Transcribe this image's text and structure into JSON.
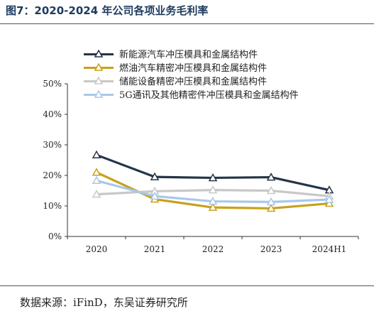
{
  "header": {
    "title": "图7：2020-2024 年公司各项业务毛利率"
  },
  "footer": {
    "source": "数据来源：iFinD，东吴证券研究所"
  },
  "chart_data": {
    "type": "line",
    "title": "",
    "xlabel": "",
    "ylabel": "",
    "categories": [
      "2020",
      "2021",
      "2022",
      "2023",
      "2024H1"
    ],
    "yticks": [
      "0%",
      "10%",
      "20%",
      "30%",
      "40%",
      "50%"
    ],
    "ylim": [
      0,
      50
    ],
    "grid": false,
    "legend_position": "top",
    "series": [
      {
        "name": "新能源汽车冲压模具和金属结构件",
        "color": "#243548",
        "values": [
          26.7,
          19.5,
          19.2,
          19.4,
          15.2
        ]
      },
      {
        "name": "燃油汽车精密冲压模具和金属结构件",
        "color": "#c9a01a",
        "values": [
          21.0,
          12.2,
          9.5,
          9.2,
          10.8
        ]
      },
      {
        "name": "储能设备精密冲压模具和金属结构件",
        "color": "#c8c8c8",
        "values": [
          13.8,
          14.8,
          15.2,
          15.0,
          13.2
        ]
      },
      {
        "name": "5G通讯及其他精密件冲压模具和金属结构件",
        "color": "#a9c8ea",
        "values": [
          18.3,
          13.2,
          11.5,
          11.3,
          12.1
        ]
      }
    ]
  }
}
